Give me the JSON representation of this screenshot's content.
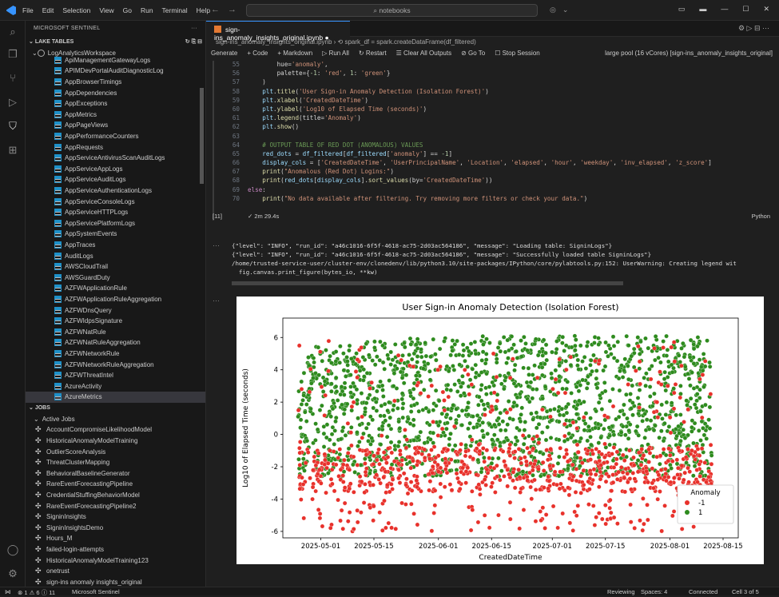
{
  "menu": [
    "File",
    "Edit",
    "Selection",
    "View",
    "Go",
    "Run",
    "Terminal",
    "Help"
  ],
  "search_placeholder": "notebooks",
  "sidebar": {
    "title": "MICROSOFT SENTINEL",
    "lake_header": "LAKE TABLES",
    "workspace": "LogAnalyticsWorkspace",
    "tables": [
      "ApiManagementGatewayLogs",
      "APIMDevPortalAuditDiagnosticLog",
      "AppBrowserTimings",
      "AppDependencies",
      "AppExceptions",
      "AppMetrics",
      "AppPageViews",
      "AppPerformanceCounters",
      "AppRequests",
      "AppServiceAntivirusScanAuditLogs",
      "AppServiceAppLogs",
      "AppServiceAuditLogs",
      "AppServiceAuthenticationLogs",
      "AppServiceConsoleLogs",
      "AppServiceHTTPLogs",
      "AppServicePlatformLogs",
      "AppSystemEvents",
      "AppTraces",
      "AuditLogs",
      "AWSCloudTrail",
      "AWSGuardDuty",
      "AZFWApplicationRule",
      "AZFWApplicationRuleAggregation",
      "AZFWDnsQuery",
      "AZFWIdpsSignature",
      "AZFWNatRule",
      "AZFWNatRuleAggregation",
      "AZFWNetworkRule",
      "AZFWNetworkRuleAggregation",
      "AZFWThreatIntel",
      "AzureActivity",
      "AzureMetrics"
    ],
    "jobs_header": "JOBS",
    "active_jobs": "Active Jobs",
    "jobs": [
      "AccountCompromiseLikelihoodModel",
      "HistoricalAnomalyModelTraining",
      "OutlierScoreAnalysis",
      "ThreatClusterMapping",
      "BehavioralBaselineGenerator",
      "RareEventForecastingPipeline",
      "CredentialStuffingBehaviorModel",
      "RareEventForecastingPipeline2",
      "SigninInsights",
      "SigninInsightsDemo",
      "Hours_M",
      "failed-login-attempts",
      "HistoricalAnomalyModelTraining123",
      "onetrust",
      "sign-ins anomaly insights_original"
    ]
  },
  "editor": {
    "tab": "sign-ins_anomaly_insights_original.ipynb",
    "breadcrumb": "sign-ins_anomaly_insights_original.ipynb  ›  ⟲ spark_df = spark.createDataFrame(df_filtered)",
    "toolbar": [
      "Generate",
      "+ Code",
      "+ Markdown",
      "▷ Run All",
      "↻ Restart",
      "☰ Clear All Outputs",
      "⊘ Go To",
      "☐ Stop Session"
    ],
    "kernel": "large pool (16 vCores) [sign-ins_anomaly_insights_original]",
    "exec_count": "[11]",
    "exec_time": "✓  2m 29.4s",
    "language": "Python"
  },
  "code_lines": [
    {
      "n": "55",
      "html": "        hue=<span class='tok-str'>'anomaly'</span>,"
    },
    {
      "n": "56",
      "html": "        palette={<span class='tok-num'>-1</span>: <span class='tok-str'>'red'</span>, <span class='tok-num'>1</span>: <span class='tok-str'>'green'</span>}"
    },
    {
      "n": "57",
      "html": "    )"
    },
    {
      "n": "58",
      "html": "    <span class='tok-var'>plt</span>.<span class='tok-fn'>title</span>(<span class='tok-str'>'User Sign-in Anomaly Detection (Isolation Forest)'</span>)"
    },
    {
      "n": "59",
      "html": "    <span class='tok-var'>plt</span>.<span class='tok-fn'>xlabel</span>(<span class='tok-str'>'CreatedDateTime'</span>)"
    },
    {
      "n": "60",
      "html": "    <span class='tok-var'>plt</span>.<span class='tok-fn'>ylabel</span>(<span class='tok-str'>'Log10 of Elapsed Time (seconds)'</span>)"
    },
    {
      "n": "61",
      "html": "    <span class='tok-var'>plt</span>.<span class='tok-fn'>legend</span>(title=<span class='tok-str'>'Anomaly'</span>)"
    },
    {
      "n": "62",
      "html": "    <span class='tok-var'>plt</span>.<span class='tok-fn'>show</span>()"
    },
    {
      "n": "63",
      "html": ""
    },
    {
      "n": "64",
      "html": "    <span class='tok-cm'># OUTPUT TABLE OF RED DOT (ANOMALOUS) VALUES</span>"
    },
    {
      "n": "65",
      "html": "    <span class='tok-var'>red_dots</span> = <span class='tok-var'>df_filtered</span>[<span class='tok-var'>df_filtered</span>[<span class='tok-str'>'anomaly'</span>] == <span class='tok-num'>-1</span>]"
    },
    {
      "n": "66",
      "html": "    <span class='tok-var'>display_cols</span> = [<span class='tok-str'>'CreatedDateTime'</span>, <span class='tok-str'>'UserPrincipalName'</span>, <span class='tok-str'>'Location'</span>, <span class='tok-str'>'elapsed'</span>, <span class='tok-str'>'hour'</span>, <span class='tok-str'>'weekday'</span>, <span class='tok-str'>'inv_elapsed'</span>, <span class='tok-str'>'z_score'</span>]"
    },
    {
      "n": "67",
      "html": "    <span class='tok-fn'>print</span>(<span class='tok-str'>\"Anomalous (Red Dot) Logins:\"</span>)"
    },
    {
      "n": "68",
      "html": "    <span class='tok-fn'>print</span>(<span class='tok-var'>red_dots</span>[<span class='tok-var'>display_cols</span>].<span class='tok-fn'>sort_values</span>(by=<span class='tok-str'>'CreatedDateTime'</span>))"
    },
    {
      "n": "69",
      "html": "<span class='tok-kw'>else</span>:"
    },
    {
      "n": "70",
      "html": "    <span class='tok-fn'>print</span>(<span class='tok-str'>\"No data available after filtering. Try removing more filters or check your data.\"</span>)"
    }
  ],
  "output_lines": [
    "{\"level\": \"INFO\", \"run_id\": \"a46c1016-6f5f-4618-ac75-2d03ac564186\", \"message\": \"Loading table: SigninLogs\"}",
    "{\"level\": \"INFO\", \"run_id\": \"a46c1016-6f5f-4618-ac75-2d03ac564186\", \"message\": \"Successfully loaded table SigninLogs\"}",
    "/home/trusted-service-user/cluster-env/clonedenv/lib/python3.10/site-packages/IPython/core/pylabtools.py:152: UserWarning: Creating legend wit",
    "  fig.canvas.print_figure(bytes_io, **kw)"
  ],
  "chart_data": {
    "type": "scatter",
    "title": "User Sign-in Anomaly Detection (Isolation Forest)",
    "xlabel": "CreatedDateTime",
    "ylabel": "Log10 of Elapsed Time (seconds)",
    "x_ticks": [
      "2025-05-01",
      "2025-05-15",
      "2025-06-01",
      "2025-06-15",
      "2025-07-01",
      "2025-07-15",
      "2025-08-01",
      "2025-08-15"
    ],
    "y_ticks": [
      -6,
      -4,
      -2,
      0,
      2,
      4,
      6
    ],
    "xlim": [
      "2025-04-21",
      "2025-08-19"
    ],
    "ylim": [
      -6.4,
      7.2
    ],
    "series": [
      {
        "name": "-1",
        "color": "#e8312b",
        "y_range_approx": [
          -6.0,
          6.0
        ],
        "dense_band": [
          -3.5,
          -1.0
        ]
      },
      {
        "name": "1",
        "color": "#2e8b1e",
        "y_range_approx": [
          -2.0,
          6.3
        ],
        "dense_band": [
          -1.5,
          6.0
        ]
      }
    ],
    "legend": {
      "title": "Anomaly",
      "position": "lower right"
    }
  },
  "statusbar": {
    "left": "⊗ 1 ⚠ 6 ⓘ 11",
    "brand": "Microsoft Sentinel",
    "right": [
      "Reviewing",
      "Spaces: 4",
      "Connected",
      "Cell 3 of 5"
    ]
  }
}
